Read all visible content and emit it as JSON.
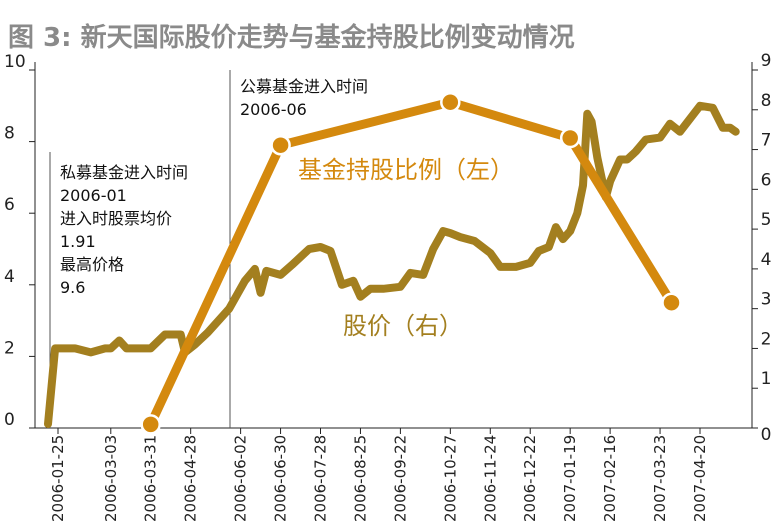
{
  "chart_data": {
    "type": "line",
    "title": "图 3: 新天国际股价走势与基金持股比例变动情况",
    "x_categories": [
      "2006-01-25",
      "2006-03-03",
      "2006-03-31",
      "2006-04-28",
      "2006-06-02",
      "2006-06-30",
      "2006-07-28",
      "2006-08-25",
      "2006-09-22",
      "2006-10-27",
      "2006-11-24",
      "2006-12-22",
      "2007-01-19",
      "2007-02-16",
      "2007-03-23",
      "2007-04-20"
    ],
    "left_axis": {
      "min": 0,
      "max": 10,
      "ticks": [
        "0",
        "2",
        "4",
        "6",
        "8",
        "10"
      ]
    },
    "right_axis": {
      "min": 0,
      "max": 9,
      "ticks": [
        "0",
        "1",
        "2",
        "3",
        "4",
        "5",
        "6",
        "7",
        "8",
        "9"
      ]
    },
    "annotations": [
      {
        "lines": [
          "私募基金进入时间",
          "2006-01",
          "进入时股票均价",
          "1.91",
          "最高价格",
          "9.6"
        ]
      },
      {
        "lines": [
          "公募基金进入时间",
          "2006-06"
        ]
      }
    ],
    "series": [
      {
        "name": "股价（右）",
        "axis": "right",
        "color": "#a37f1f",
        "points": [
          [
            "2006-01-18",
            0.1
          ],
          [
            "2006-01-23",
            2.0
          ],
          [
            "2006-02-06",
            2.0
          ],
          [
            "2006-02-17",
            1.9
          ],
          [
            "2006-02-27",
            2.0
          ],
          [
            "2006-03-03",
            2.0
          ],
          [
            "2006-03-09",
            2.2
          ],
          [
            "2006-03-14",
            2.0
          ],
          [
            "2006-03-23",
            2.0
          ],
          [
            "2006-03-31",
            2.0
          ],
          [
            "2006-04-10",
            2.35
          ],
          [
            "2006-04-21",
            2.35
          ],
          [
            "2006-04-24",
            1.9
          ],
          [
            "2006-05-01",
            2.1
          ],
          [
            "2006-05-10",
            2.4
          ],
          [
            "2006-05-25",
            3.0
          ],
          [
            "2006-06-05",
            3.7
          ],
          [
            "2006-06-12",
            4.0
          ],
          [
            "2006-06-16",
            3.4
          ],
          [
            "2006-06-20",
            3.95
          ],
          [
            "2006-06-30",
            3.85
          ],
          [
            "2006-07-08",
            4.1
          ],
          [
            "2006-07-20",
            4.5
          ],
          [
            "2006-07-28",
            4.55
          ],
          [
            "2006-08-04",
            4.45
          ],
          [
            "2006-08-12",
            3.6
          ],
          [
            "2006-08-20",
            3.7
          ],
          [
            "2006-08-25",
            3.3
          ],
          [
            "2006-09-01",
            3.5
          ],
          [
            "2006-09-10",
            3.5
          ],
          [
            "2006-09-22",
            3.55
          ],
          [
            "2006-09-29",
            3.9
          ],
          [
            "2006-10-08",
            3.85
          ],
          [
            "2006-10-15",
            4.5
          ],
          [
            "2006-10-22",
            4.95
          ],
          [
            "2006-10-27",
            4.9
          ],
          [
            "2006-11-03",
            4.8
          ],
          [
            "2006-11-13",
            4.7
          ],
          [
            "2006-11-24",
            4.4
          ],
          [
            "2006-12-01",
            4.05
          ],
          [
            "2006-12-12",
            4.05
          ],
          [
            "2006-12-22",
            4.15
          ],
          [
            "2006-12-28",
            4.45
          ],
          [
            "2007-01-04",
            4.55
          ],
          [
            "2007-01-09",
            5.05
          ],
          [
            "2007-01-14",
            4.75
          ],
          [
            "2007-01-19",
            4.95
          ],
          [
            "2007-01-24",
            5.4
          ],
          [
            "2007-01-28",
            6.1
          ],
          [
            "2007-01-31",
            7.9
          ],
          [
            "2007-02-03",
            7.7
          ],
          [
            "2007-02-07",
            6.8
          ],
          [
            "2007-02-13",
            5.8
          ],
          [
            "2007-02-16",
            6.2
          ],
          [
            "2007-02-23",
            6.75
          ],
          [
            "2007-02-28",
            6.75
          ],
          [
            "2007-03-06",
            6.95
          ],
          [
            "2007-03-13",
            7.25
          ],
          [
            "2007-03-23",
            7.3
          ],
          [
            "2007-03-30",
            7.65
          ],
          [
            "2007-04-06",
            7.45
          ],
          [
            "2007-04-20",
            8.1
          ],
          [
            "2007-04-29",
            8.05
          ],
          [
            "2007-05-06",
            7.55
          ],
          [
            "2007-05-11",
            7.55
          ],
          [
            "2007-05-15",
            7.45
          ]
        ]
      },
      {
        "name": "基金持股比例（左）",
        "axis": "left",
        "color": "#d4890e",
        "points": [
          [
            "2006-03-31",
            0.1
          ],
          [
            "2006-06-30",
            7.9
          ],
          [
            "2006-10-27",
            9.1
          ],
          [
            "2007-01-19",
            8.1
          ],
          [
            "2007-03-31",
            3.5
          ]
        ]
      }
    ]
  }
}
